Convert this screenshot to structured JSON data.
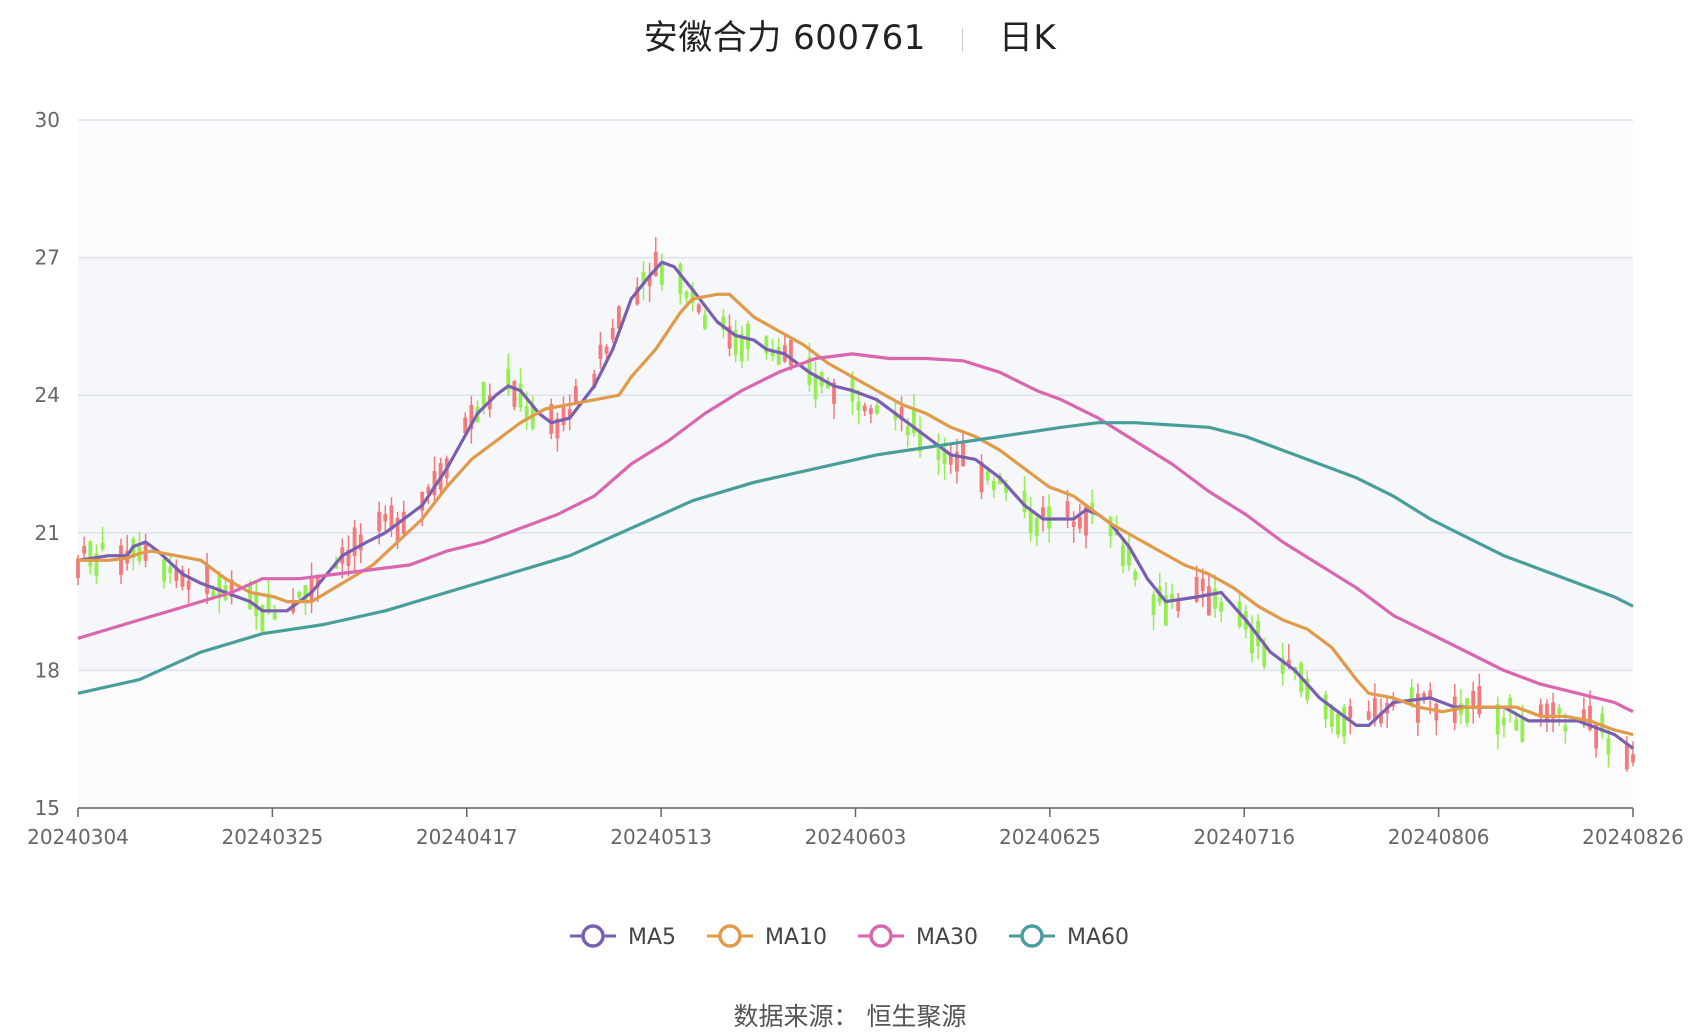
{
  "title": {
    "name": "安徽合力 600761",
    "period": "日K"
  },
  "source": {
    "prefix": "数据来源：",
    "name": "恒生聚源"
  },
  "chart_data": {
    "type": "candlestick",
    "ylim": [
      15,
      30
    ],
    "yticks": [
      15,
      18,
      21,
      24,
      27,
      30
    ],
    "xtick_labels": [
      "20240304",
      "20240325",
      "20240417",
      "20240513",
      "20240603",
      "20240625",
      "20240716",
      "20240806",
      "20240826"
    ],
    "colors": {
      "up": "#f47a7a",
      "down": "#93ef4d",
      "grid": "#dde3ee",
      "band": "#f5f7fb"
    },
    "series": [
      {
        "name": "MA5",
        "color": "#7a5fb0",
        "points": [
          [
            0,
            20.4
          ],
          [
            5,
            20.5
          ],
          [
            8,
            20.5
          ],
          [
            9,
            20.7
          ],
          [
            11,
            20.8
          ],
          [
            13,
            20.6
          ],
          [
            17,
            20.1
          ],
          [
            20,
            19.9
          ],
          [
            24,
            19.7
          ],
          [
            28,
            19.5
          ],
          [
            30,
            19.3
          ],
          [
            34,
            19.3
          ],
          [
            38,
            19.7
          ],
          [
            43,
            20.5
          ],
          [
            47,
            20.8
          ],
          [
            50,
            21.0
          ],
          [
            56,
            21.6
          ],
          [
            60,
            22.4
          ],
          [
            65,
            23.6
          ],
          [
            68,
            24.0
          ],
          [
            70,
            24.2
          ],
          [
            72,
            24.1
          ],
          [
            75,
            23.6
          ],
          [
            77,
            23.4
          ],
          [
            80,
            23.5
          ],
          [
            84,
            24.2
          ],
          [
            87,
            25.0
          ],
          [
            90,
            26.1
          ],
          [
            93,
            26.6
          ],
          [
            95,
            26.9
          ],
          [
            97,
            26.8
          ],
          [
            100,
            26.3
          ],
          [
            104,
            25.6
          ],
          [
            107,
            25.3
          ],
          [
            110,
            25.2
          ],
          [
            112,
            25.0
          ],
          [
            115,
            24.9
          ],
          [
            119,
            24.5
          ],
          [
            123,
            24.2
          ],
          [
            126,
            24.1
          ],
          [
            130,
            23.9
          ],
          [
            134,
            23.5
          ],
          [
            138,
            23.1
          ],
          [
            142,
            22.7
          ],
          [
            146,
            22.6
          ],
          [
            150,
            22.2
          ],
          [
            154,
            21.6
          ],
          [
            157,
            21.3
          ],
          [
            160,
            21.3
          ],
          [
            162,
            21.3
          ],
          [
            164,
            21.5
          ],
          [
            166,
            21.4
          ],
          [
            168,
            21.2
          ],
          [
            171,
            20.7
          ],
          [
            174,
            20.0
          ],
          [
            177,
            19.5
          ],
          [
            182,
            19.6
          ],
          [
            186,
            19.7
          ],
          [
            190,
            19.1
          ],
          [
            194,
            18.4
          ],
          [
            198,
            18.0
          ],
          [
            202,
            17.4
          ],
          [
            206,
            17.0
          ],
          [
            208,
            16.8
          ],
          [
            210,
            16.8
          ],
          [
            214,
            17.3
          ],
          [
            220,
            17.4
          ],
          [
            224,
            17.2
          ],
          [
            228,
            17.2
          ],
          [
            232,
            17.2
          ],
          [
            236,
            16.9
          ],
          [
            240,
            16.9
          ],
          [
            244,
            16.9
          ],
          [
            248,
            16.7
          ],
          [
            250,
            16.6
          ],
          [
            253,
            16.3
          ]
        ]
      },
      {
        "name": "MA10",
        "color": "#e09a4a",
        "points": [
          [
            0,
            20.4
          ],
          [
            5,
            20.4
          ],
          [
            8,
            20.45
          ],
          [
            10,
            20.55
          ],
          [
            12,
            20.6
          ],
          [
            16,
            20.5
          ],
          [
            20,
            20.4
          ],
          [
            24,
            20.0
          ],
          [
            28,
            19.7
          ],
          [
            32,
            19.6
          ],
          [
            34,
            19.5
          ],
          [
            38,
            19.5
          ],
          [
            43,
            19.9
          ],
          [
            48,
            20.3
          ],
          [
            52,
            20.8
          ],
          [
            56,
            21.3
          ],
          [
            60,
            22.0
          ],
          [
            64,
            22.6
          ],
          [
            68,
            23.0
          ],
          [
            72,
            23.4
          ],
          [
            76,
            23.7
          ],
          [
            80,
            23.8
          ],
          [
            84,
            23.9
          ],
          [
            88,
            24.0
          ],
          [
            90,
            24.4
          ],
          [
            94,
            25.0
          ],
          [
            98,
            25.8
          ],
          [
            100,
            26.1
          ],
          [
            104,
            26.2
          ],
          [
            106,
            26.2
          ],
          [
            110,
            25.7
          ],
          [
            114,
            25.4
          ],
          [
            118,
            25.1
          ],
          [
            122,
            24.7
          ],
          [
            126,
            24.4
          ],
          [
            130,
            24.1
          ],
          [
            134,
            23.8
          ],
          [
            138,
            23.6
          ],
          [
            142,
            23.3
          ],
          [
            146,
            23.1
          ],
          [
            150,
            22.8
          ],
          [
            154,
            22.4
          ],
          [
            158,
            22.0
          ],
          [
            162,
            21.8
          ],
          [
            164,
            21.6
          ],
          [
            168,
            21.2
          ],
          [
            172,
            20.9
          ],
          [
            176,
            20.6
          ],
          [
            180,
            20.3
          ],
          [
            184,
            20.1
          ],
          [
            188,
            19.8
          ],
          [
            192,
            19.4
          ],
          [
            196,
            19.1
          ],
          [
            200,
            18.9
          ],
          [
            204,
            18.5
          ],
          [
            208,
            17.8
          ],
          [
            210,
            17.5
          ],
          [
            214,
            17.4
          ],
          [
            218,
            17.2
          ],
          [
            222,
            17.1
          ],
          [
            226,
            17.2
          ],
          [
            230,
            17.2
          ],
          [
            234,
            17.2
          ],
          [
            238,
            17.0
          ],
          [
            242,
            17.0
          ],
          [
            246,
            16.9
          ],
          [
            250,
            16.7
          ],
          [
            253,
            16.6
          ]
        ]
      },
      {
        "name": "MA30",
        "color": "#d966ae",
        "points": [
          [
            0,
            18.7
          ],
          [
            5,
            18.9
          ],
          [
            10,
            19.1
          ],
          [
            15,
            19.3
          ],
          [
            20,
            19.5
          ],
          [
            25,
            19.7
          ],
          [
            30,
            20.0
          ],
          [
            36,
            20.0
          ],
          [
            42,
            20.1
          ],
          [
            48,
            20.2
          ],
          [
            54,
            20.3
          ],
          [
            60,
            20.6
          ],
          [
            66,
            20.8
          ],
          [
            72,
            21.1
          ],
          [
            78,
            21.4
          ],
          [
            84,
            21.8
          ],
          [
            90,
            22.5
          ],
          [
            96,
            23.0
          ],
          [
            102,
            23.6
          ],
          [
            108,
            24.1
          ],
          [
            114,
            24.5
          ],
          [
            120,
            24.8
          ],
          [
            126,
            24.9
          ],
          [
            132,
            24.8
          ],
          [
            138,
            24.8
          ],
          [
            144,
            24.75
          ],
          [
            150,
            24.5
          ],
          [
            156,
            24.1
          ],
          [
            160,
            23.9
          ],
          [
            166,
            23.5
          ],
          [
            172,
            23.0
          ],
          [
            178,
            22.5
          ],
          [
            184,
            21.9
          ],
          [
            190,
            21.4
          ],
          [
            196,
            20.8
          ],
          [
            202,
            20.3
          ],
          [
            208,
            19.8
          ],
          [
            214,
            19.2
          ],
          [
            220,
            18.8
          ],
          [
            226,
            18.4
          ],
          [
            232,
            18.0
          ],
          [
            238,
            17.7
          ],
          [
            244,
            17.5
          ],
          [
            250,
            17.3
          ],
          [
            253,
            17.1
          ]
        ]
      },
      {
        "name": "MA60",
        "color": "#4a9e9a",
        "points": [
          [
            0,
            17.5
          ],
          [
            10,
            17.8
          ],
          [
            20,
            18.4
          ],
          [
            30,
            18.8
          ],
          [
            40,
            19.0
          ],
          [
            50,
            19.3
          ],
          [
            60,
            19.7
          ],
          [
            70,
            20.1
          ],
          [
            80,
            20.5
          ],
          [
            90,
            21.1
          ],
          [
            100,
            21.7
          ],
          [
            110,
            22.1
          ],
          [
            120,
            22.4
          ],
          [
            130,
            22.7
          ],
          [
            140,
            22.9
          ],
          [
            150,
            23.1
          ],
          [
            160,
            23.3
          ],
          [
            166,
            23.4
          ],
          [
            172,
            23.4
          ],
          [
            178,
            23.35
          ],
          [
            184,
            23.3
          ],
          [
            190,
            23.1
          ],
          [
            196,
            22.8
          ],
          [
            202,
            22.5
          ],
          [
            208,
            22.2
          ],
          [
            214,
            21.8
          ],
          [
            220,
            21.3
          ],
          [
            226,
            20.9
          ],
          [
            232,
            20.5
          ],
          [
            238,
            20.2
          ],
          [
            244,
            19.9
          ],
          [
            250,
            19.6
          ],
          [
            253,
            19.4
          ]
        ]
      }
    ]
  }
}
